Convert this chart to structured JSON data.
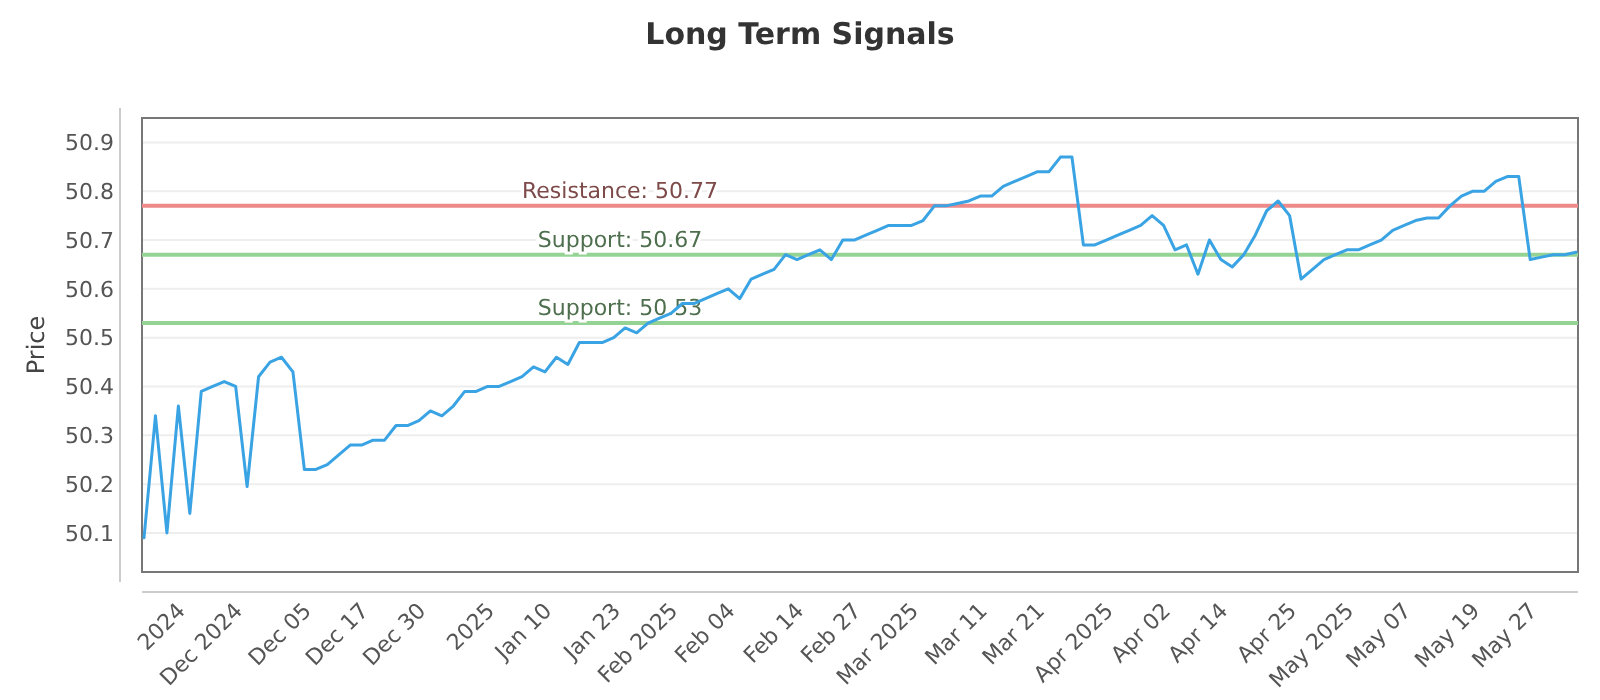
{
  "chart_data": {
    "type": "line",
    "title": "Long Term Signals",
    "ylabel": "Price",
    "categories": [
      null,
      null,
      null,
      "2024",
      null,
      null,
      null,
      null,
      "Dec 2024",
      null,
      null,
      null,
      null,
      null,
      "Dec 05",
      null,
      null,
      null,
      null,
      "Dec 17",
      null,
      null,
      null,
      null,
      "Dec 30",
      null,
      null,
      null,
      null,
      null,
      "2025",
      null,
      null,
      null,
      null,
      "Jan 10",
      null,
      null,
      null,
      null,
      null,
      "Jan 23",
      null,
      null,
      null,
      null,
      "Feb 2025",
      null,
      null,
      null,
      null,
      "Feb 04",
      null,
      null,
      null,
      null,
      null,
      "Feb 14",
      null,
      null,
      null,
      null,
      "Feb 27",
      null,
      null,
      null,
      null,
      "Mar 2025",
      null,
      null,
      null,
      null,
      null,
      "Mar 11",
      null,
      null,
      null,
      null,
      "Mar 21",
      null,
      null,
      null,
      null,
      null,
      "Apr 2025",
      null,
      null,
      null,
      null,
      "Apr 02",
      null,
      null,
      null,
      null,
      "Apr 14",
      null,
      null,
      null,
      null,
      null,
      "Apr 25",
      null,
      null,
      null,
      null,
      "May 2025",
      null,
      null,
      null,
      null,
      "May 07",
      null,
      null,
      null,
      null,
      null,
      "May 19",
      null,
      null,
      null,
      null,
      "May 27",
      null,
      null,
      null,
      null
    ],
    "series": [
      {
        "color": "#3aa3e3",
        "values": [
          50.09,
          50.34,
          50.1,
          50.36,
          50.14,
          50.39,
          50.4,
          50.41,
          50.4,
          50.195,
          50.42,
          50.45,
          50.46,
          50.43,
          50.23,
          50.23,
          50.24,
          50.26,
          50.28,
          50.28,
          50.29,
          50.29,
          50.32,
          50.32,
          50.33,
          50.35,
          50.34,
          50.36,
          50.39,
          50.39,
          50.4,
          50.4,
          50.41,
          50.42,
          50.44,
          50.43,
          50.46,
          50.445,
          50.49,
          50.49,
          50.49,
          50.5,
          50.52,
          50.51,
          50.53,
          50.54,
          50.55,
          50.57,
          50.57,
          50.58,
          50.59,
          50.6,
          50.58,
          50.62,
          50.63,
          50.64,
          50.67,
          50.66,
          50.67,
          50.68,
          50.66,
          50.7,
          50.7,
          50.71,
          50.72,
          50.73,
          50.73,
          50.73,
          50.74,
          50.77,
          50.77,
          50.775,
          50.78,
          50.79,
          50.79,
          50.81,
          50.82,
          50.83,
          50.84,
          50.84,
          50.87,
          50.87,
          50.69,
          50.69,
          50.7,
          50.71,
          50.72,
          50.73,
          50.75,
          50.73,
          50.68,
          50.69,
          50.63,
          50.7,
          50.66,
          50.645,
          50.67,
          50.71,
          50.76,
          50.78,
          50.75,
          50.62,
          50.64,
          50.66,
          50.67,
          50.68,
          50.68,
          50.69,
          50.7,
          50.72,
          50.73,
          50.74,
          50.745,
          50.745,
          50.77,
          50.79,
          50.8,
          50.8,
          50.82,
          50.83,
          50.83,
          50.66,
          50.665,
          50.67,
          50.67,
          50.675
        ]
      }
    ],
    "ylim": [
      50.02,
      50.95
    ],
    "yticks": [
      50.1,
      50.2,
      50.3,
      50.4,
      50.5,
      50.6,
      50.7,
      50.8,
      50.9
    ],
    "grid": "y",
    "line_style": "solid",
    "marker": "none",
    "ref_lines": [
      {
        "axis": "y",
        "value": 50.77,
        "label": "Resistance: 50.77",
        "color": "#ee8a8a"
      },
      {
        "axis": "y",
        "value": 50.67,
        "label": "Support: 50.67",
        "color": "#95d395"
      },
      {
        "axis": "y",
        "value": 50.53,
        "label": "Support: 50.53",
        "color": "#95d395"
      }
    ]
  }
}
